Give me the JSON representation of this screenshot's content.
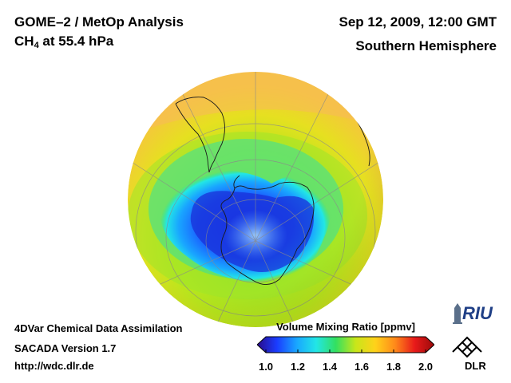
{
  "header": {
    "title": "GOME–2 / MetOp Analysis",
    "species": "CH",
    "species_sub": "4",
    "level": " at 55.4 hPa",
    "datetime": "Sep 12, 2009, 12:00 GMT",
    "region": "Southern Hemisphere"
  },
  "footer": {
    "line1": "4DVar Chemical Data Assimilation",
    "line2": "SACADA Version 1.7",
    "line3": "http://wdc.dlr.de"
  },
  "colorbar": {
    "title": "Volume Mixing Ratio [ppmv]",
    "ticks": [
      "1.0",
      "1.2",
      "1.4",
      "1.6",
      "1.8",
      "2.0"
    ],
    "min": 1.0,
    "max": 2.0,
    "colors": [
      "#2a0a8a",
      "#1a3cff",
      "#19a6ff",
      "#22e6e6",
      "#33e060",
      "#c8e61a",
      "#ffd21a",
      "#ff8a1a",
      "#e81a1a",
      "#9a0a0a"
    ]
  },
  "logos": {
    "riu": "RIU",
    "dlr": "DLR"
  }
}
